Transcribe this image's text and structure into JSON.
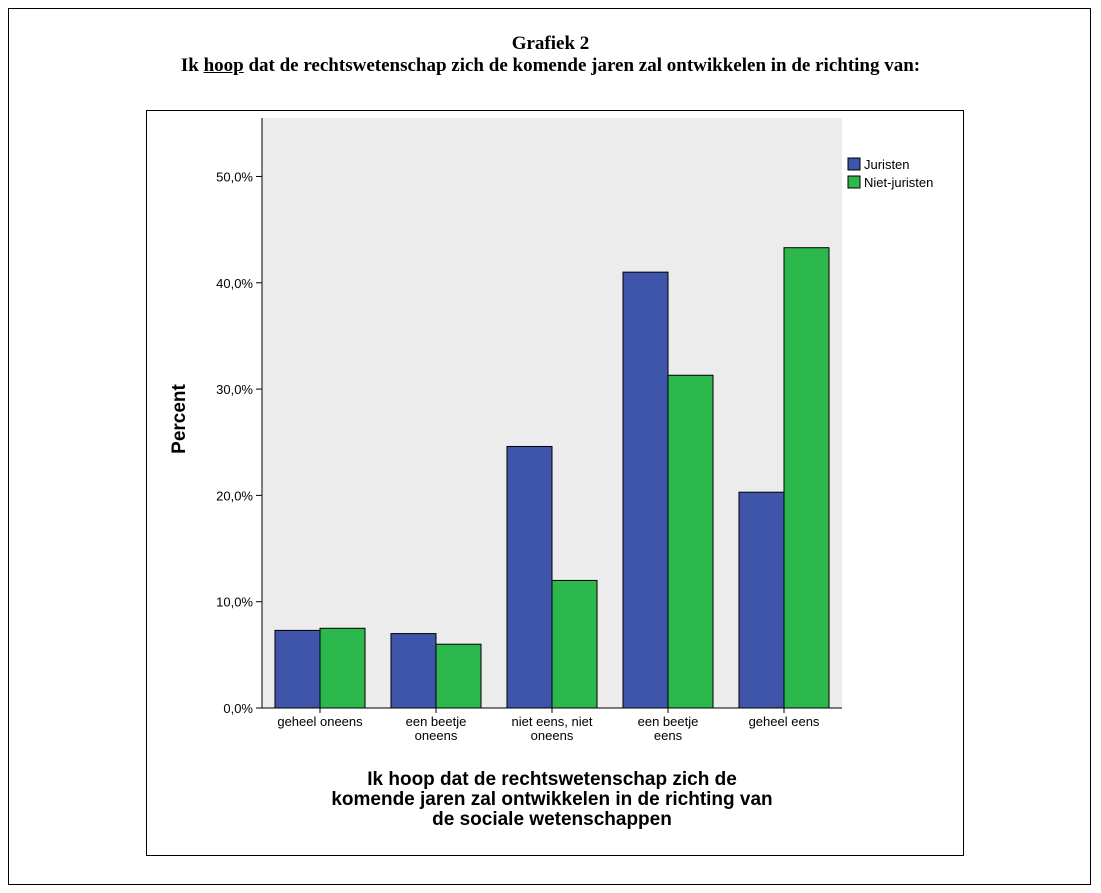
{
  "heading": {
    "line1": "Grafiek 2",
    "line2_prefix": "Ik ",
    "line2_emphasis": "hoop",
    "line2_suffix": " dat de rechtswetenschap zich de komende jaren zal ontwikkelen in de richting van:"
  },
  "chart_data": {
    "type": "bar",
    "title": "",
    "ylabel": "Percent",
    "xlabel_lines": [
      "Ik hoop dat de rechtswetenschap zich de",
      "komende jaren zal ontwikkelen in de richting van",
      "de sociale wetenschappen"
    ],
    "categories": [
      [
        "geheel oneens"
      ],
      [
        "een beetje",
        "oneens"
      ],
      [
        "niet eens, niet",
        "oneens"
      ],
      [
        "een beetje",
        "eens"
      ],
      [
        "geheel eens"
      ]
    ],
    "series": [
      {
        "name": "Juristen",
        "color": "#3f55a9",
        "values": [
          7.3,
          7.0,
          24.6,
          41.0,
          20.3
        ]
      },
      {
        "name": "Niet-juristen",
        "color": "#2db84d",
        "values": [
          7.5,
          6.0,
          12.0,
          31.3,
          43.3
        ]
      }
    ],
    "ylim": [
      0,
      55.5
    ],
    "yticks": [
      0,
      10,
      20,
      30,
      40,
      50
    ],
    "ytick_labels": [
      "0,0%",
      "10,0%",
      "20,0%",
      "30,0%",
      "40,0%",
      "50,0%"
    ],
    "grid": false,
    "legend_position": "top-right",
    "plot_background": "#ececec"
  }
}
